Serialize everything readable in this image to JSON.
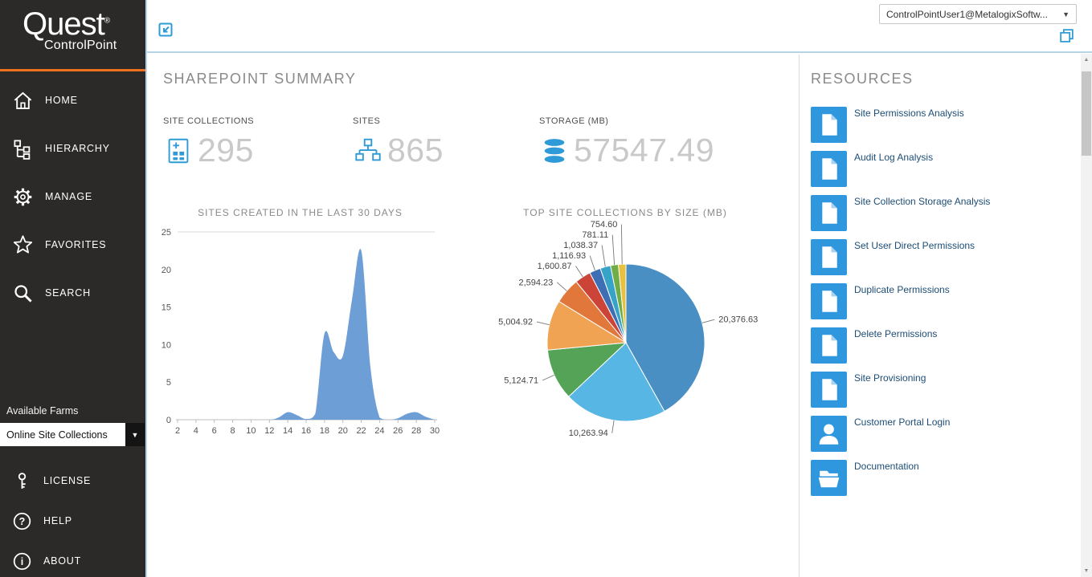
{
  "brand": {
    "name": "Quest",
    "registered": "®",
    "product": "ControlPoint",
    "accent_orange": "#ee7120",
    "accent_blue": "#2e9bd8"
  },
  "topbar": {
    "user_dropdown_value": "ControlPointUser1@MetalogixSoftw...",
    "popout_icon": "popout-icon",
    "restore_icon": "restore-window-icon"
  },
  "sidebar": {
    "items": [
      {
        "label": "HOME",
        "icon": "home-icon"
      },
      {
        "label": "HIERARCHY",
        "icon": "hierarchy-icon"
      },
      {
        "label": "MANAGE",
        "icon": "manage-icon"
      },
      {
        "label": "FAVORITES",
        "icon": "favorites-icon"
      },
      {
        "label": "SEARCH",
        "icon": "search-icon"
      }
    ],
    "available_farms_label": "Available Farms",
    "farms_dropdown_value": "Online Site Collections",
    "bottom_items": [
      {
        "label": "LICENSE",
        "icon": "license-icon"
      },
      {
        "label": "HELP",
        "icon": "help-icon"
      },
      {
        "label": "ABOUT",
        "icon": "about-icon"
      }
    ]
  },
  "main": {
    "title": "SHAREPOINT SUMMARY",
    "stats": [
      {
        "label": "SITE COLLECTIONS",
        "value": "295",
        "icon": "site-collections-icon"
      },
      {
        "label": "SITES",
        "value": "865",
        "icon": "sites-icon"
      },
      {
        "label": "STORAGE (MB)",
        "value": "57547.49",
        "icon": "storage-icon"
      }
    ]
  },
  "resources": {
    "title": "RESOURCES",
    "items": [
      {
        "label": "Site Permissions Analysis",
        "icon": "document-icon"
      },
      {
        "label": "Audit Log Analysis",
        "icon": "document-icon"
      },
      {
        "label": "Site Collection Storage Analysis",
        "icon": "document-icon"
      },
      {
        "label": "Set User Direct Permissions",
        "icon": "document-icon"
      },
      {
        "label": "Duplicate Permissions",
        "icon": "document-icon"
      },
      {
        "label": "Delete Permissions",
        "icon": "document-icon"
      },
      {
        "label": "Site Provisioning",
        "icon": "document-icon"
      },
      {
        "label": "Customer Portal Login",
        "icon": "person-icon"
      },
      {
        "label": "Documentation",
        "icon": "folder-icon"
      }
    ]
  },
  "chart_data": [
    {
      "type": "area",
      "title": "SITES CREATED IN THE LAST 30 DAYS",
      "x": [
        2,
        4,
        6,
        8,
        10,
        12,
        13,
        14,
        15,
        16,
        17,
        18,
        19,
        20,
        21,
        22,
        23,
        24,
        25,
        26,
        27,
        28,
        29,
        30
      ],
      "values": [
        0,
        0,
        0,
        0,
        0,
        0,
        0.3,
        1,
        0.6,
        0.1,
        0.8,
        11.5,
        9,
        8.5,
        16,
        22.5,
        7,
        0.3,
        0,
        0.2,
        0.8,
        1,
        0.4,
        0
      ],
      "xlim": [
        2,
        30
      ],
      "ylim": [
        0,
        25
      ],
      "yticks": [
        0,
        5,
        10,
        15,
        20,
        25
      ],
      "xticks": [
        2,
        4,
        6,
        8,
        10,
        12,
        14,
        16,
        18,
        20,
        22,
        24,
        26,
        28,
        30
      ],
      "color": "#6d9ed6",
      "grid": "top-line-only",
      "legend": "none"
    },
    {
      "type": "pie",
      "title": "TOP SITE COLLECTIONS BY SIZE (MB)",
      "legend": "none",
      "slices": [
        {
          "label": "20,376.63",
          "value": 20376.63,
          "color": "#4a8fc4"
        },
        {
          "label": "10,263.94",
          "value": 10263.94,
          "color": "#58b6e4"
        },
        {
          "label": "5,124.71",
          "value": 5124.71,
          "color": "#55a357"
        },
        {
          "label": "5,004.92",
          "value": 5004.92,
          "color": "#f0a353"
        },
        {
          "label": "2,594.23",
          "value": 2594.23,
          "color": "#e2773b"
        },
        {
          "label": "1,600.87",
          "value": 1600.87,
          "color": "#cc4437"
        },
        {
          "label": "1,116.93",
          "value": 1116.93,
          "color": "#3e6fb5"
        },
        {
          "label": "1,038.37",
          "value": 1038.37,
          "color": "#37a3c8"
        },
        {
          "label": "781.11",
          "value": 781.11,
          "color": "#70ad47"
        },
        {
          "label": "754.60",
          "value": 754.6,
          "color": "#e7c13f"
        }
      ]
    }
  ]
}
